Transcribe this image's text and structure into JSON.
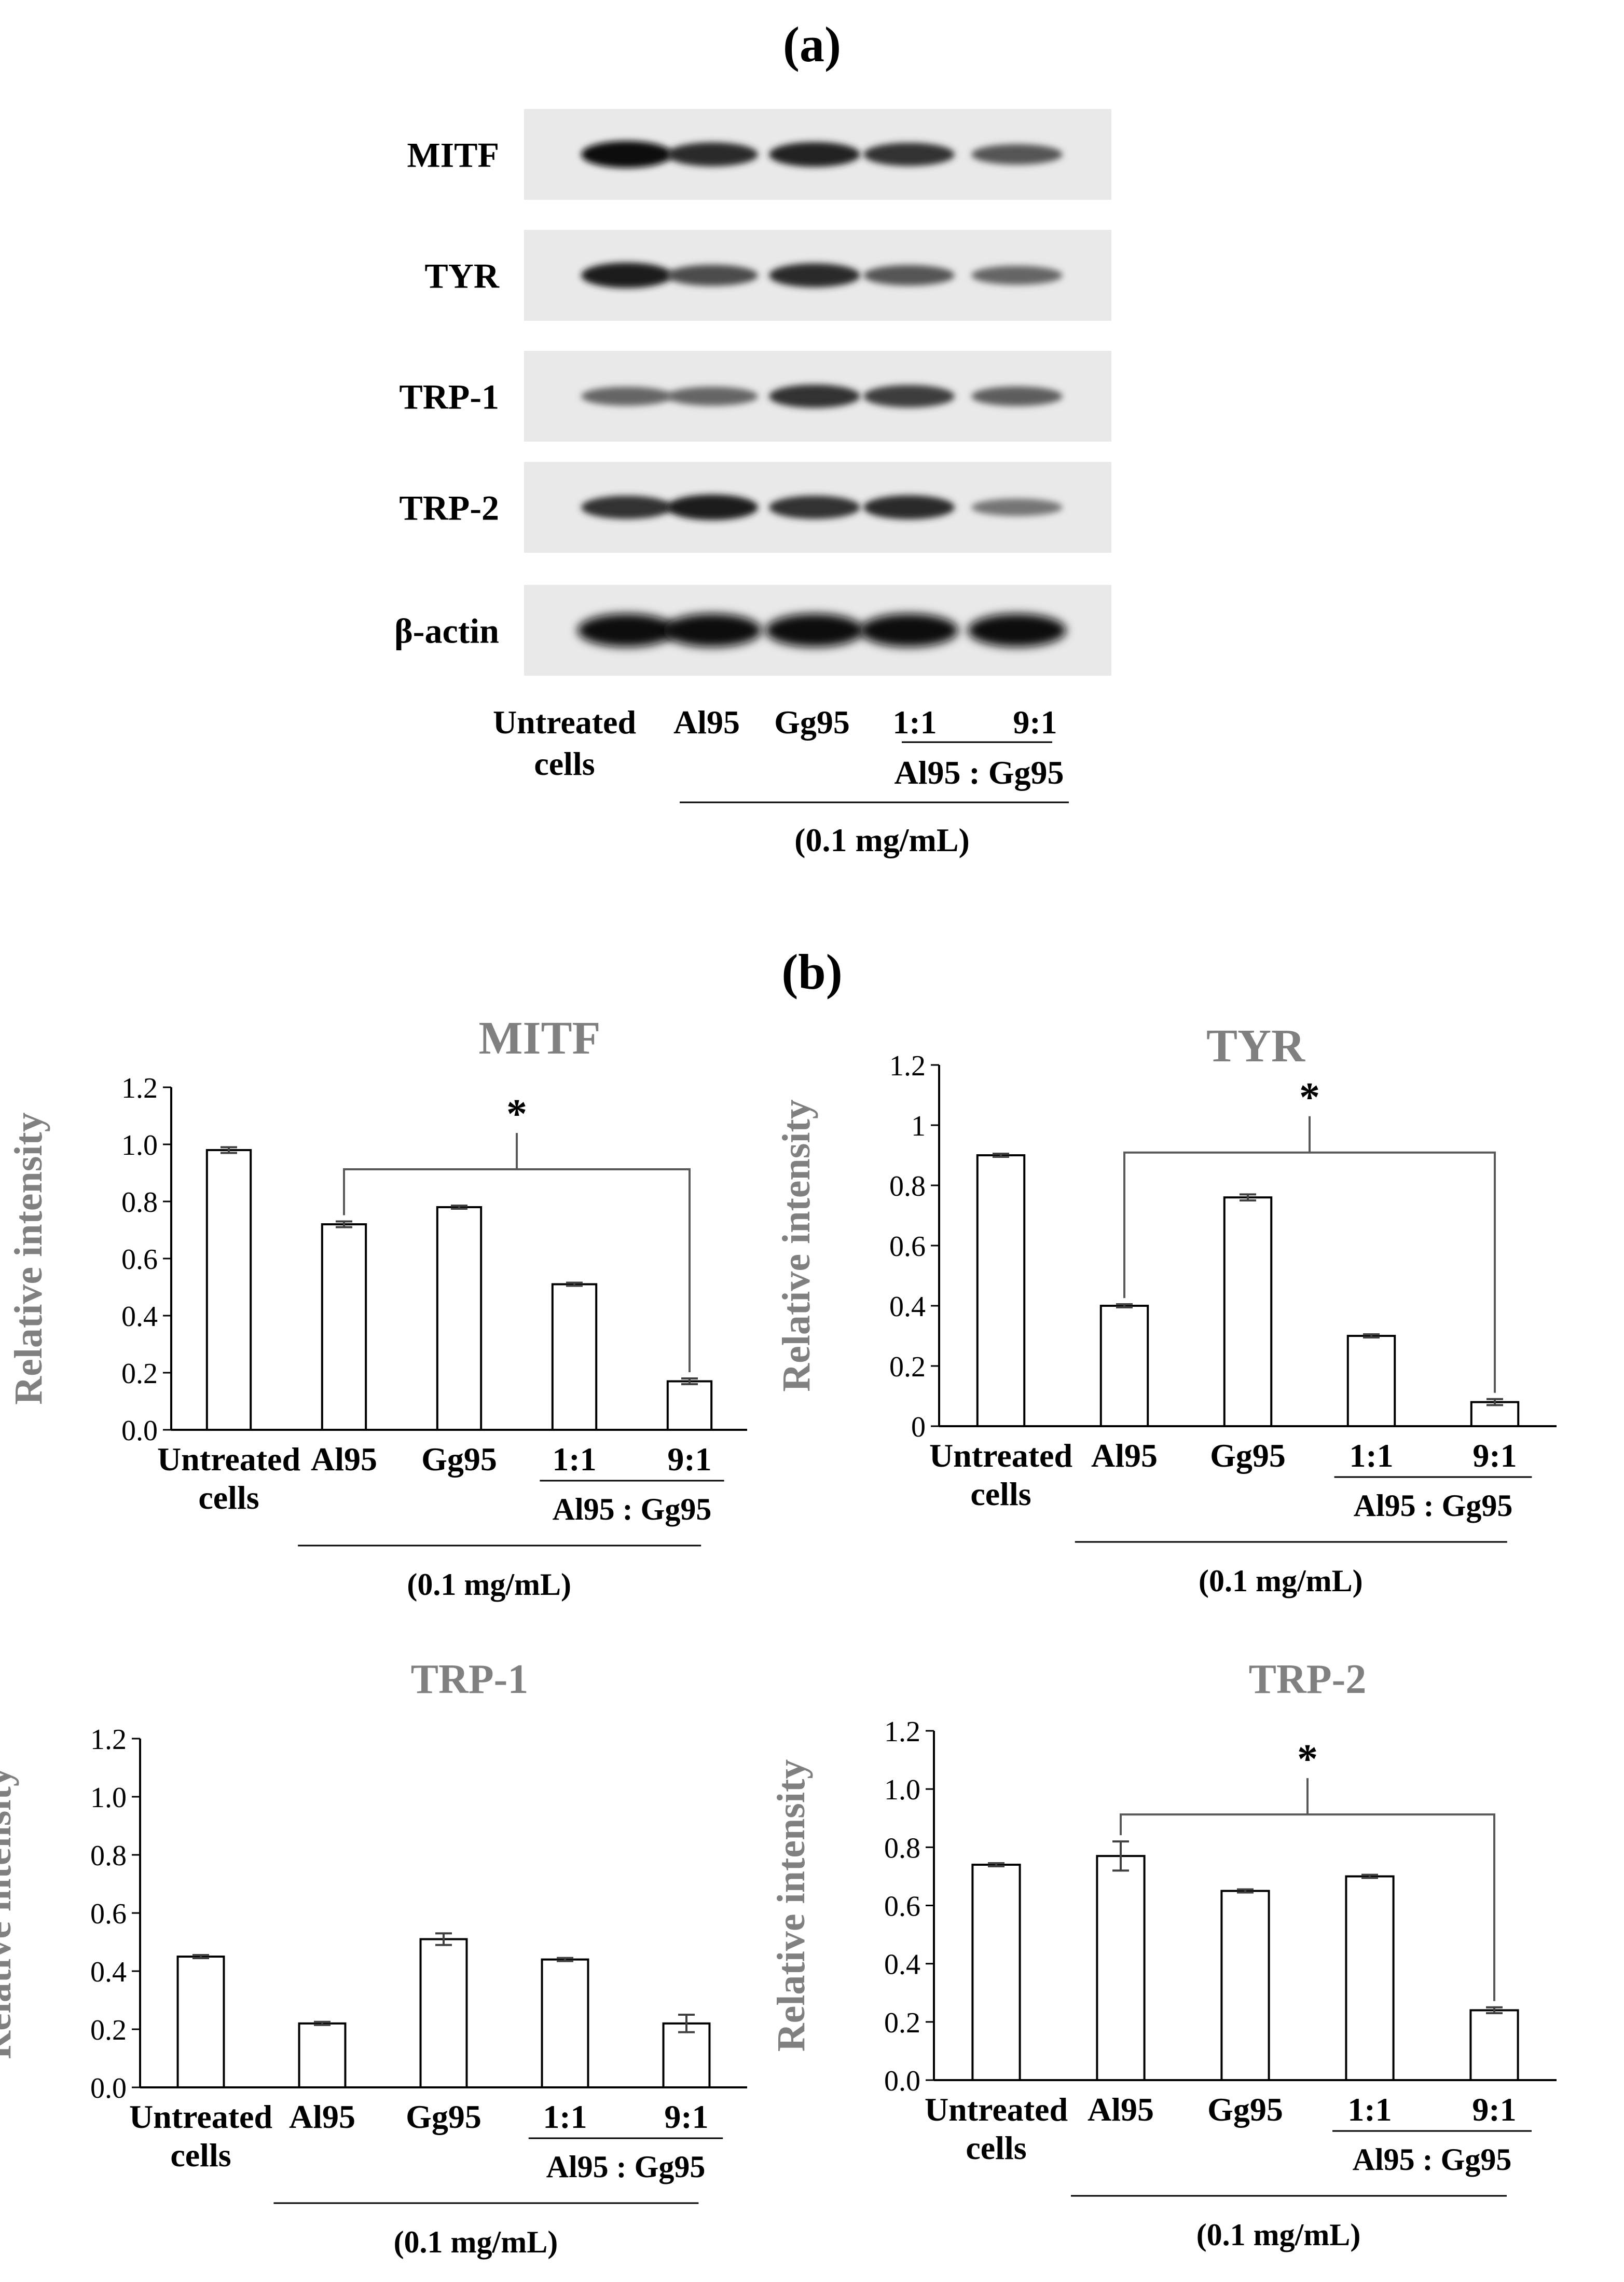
{
  "panel_a_label": "(a)",
  "panel_b_label": "(b)",
  "blot": {
    "proteins": [
      "MITF",
      "TYR",
      "TRP-1",
      "TRP-2",
      "β-actin"
    ],
    "lanes": [
      "Untreated cells",
      "Al95",
      "Gg95",
      "1:1",
      "9:1"
    ],
    "group_label": "Al95 : Gg95",
    "concentration": "(0.1 mg/mL)"
  },
  "charts_common": {
    "categories": [
      "Untreated cells",
      "Al95",
      "Gg95",
      "1:1",
      "9:1"
    ],
    "group_label": "Al95 : Gg95",
    "concentration": "(0.1 mg/mL)",
    "significance_mark": "*"
  },
  "chart_data": [
    {
      "type": "bar",
      "title": "MITF",
      "ylabel": "Relative intensity",
      "categories": [
        "Untreated cells",
        "Al95",
        "Gg95",
        "1:1",
        "9:1"
      ],
      "values": [
        0.98,
        0.72,
        0.78,
        0.51,
        0.17
      ],
      "errors": [
        0.01,
        0.01,
        0.005,
        0.005,
        0.01
      ],
      "ylim": [
        0,
        1.2
      ],
      "yticks": [
        "0.0",
        "0.2",
        "0.4",
        "0.6",
        "0.8",
        "1.0",
        "1.2"
      ],
      "significance": {
        "from": 1,
        "to": 4,
        "mark": "*"
      }
    },
    {
      "type": "bar",
      "title": "TYR",
      "ylabel": "Relative intensity",
      "categories": [
        "Untreated cells",
        "Al95",
        "Gg95",
        "1:1",
        "9:1"
      ],
      "values": [
        0.9,
        0.4,
        0.76,
        0.3,
        0.08
      ],
      "errors": [
        0.005,
        0.005,
        0.01,
        0.005,
        0.01
      ],
      "ylim": [
        0,
        1.2
      ],
      "yticks": [
        "0",
        "0.2",
        "0.4",
        "0.6",
        "0.8",
        "1",
        "1.2"
      ],
      "significance": {
        "from": 1,
        "to": 4,
        "mark": "*"
      }
    },
    {
      "type": "bar",
      "title": "TRP-1",
      "ylabel": "Relative intensity",
      "categories": [
        "Untreated cells",
        "Al95",
        "Gg95",
        "1:1",
        "9:1"
      ],
      "values": [
        0.45,
        0.22,
        0.51,
        0.44,
        0.22
      ],
      "errors": [
        0.005,
        0.005,
        0.02,
        0.005,
        0.03
      ],
      "ylim": [
        0,
        1.2
      ],
      "yticks": [
        "0.0",
        "0.2",
        "0.4",
        "0.6",
        "0.8",
        "1.0",
        "1.2"
      ]
    },
    {
      "type": "bar",
      "title": "TRP-2",
      "ylabel": "Relative intensity",
      "categories": [
        "Untreated cells",
        "Al95",
        "Gg95",
        "1:1",
        "9:1"
      ],
      "values": [
        0.74,
        0.77,
        0.65,
        0.7,
        0.24
      ],
      "errors": [
        0.005,
        0.05,
        0.005,
        0.005,
        0.01
      ],
      "ylim": [
        0,
        1.2
      ],
      "yticks": [
        "0.0",
        "0.2",
        "0.4",
        "0.6",
        "0.8",
        "1.0",
        "1.2"
      ],
      "significance": {
        "from": 1,
        "to": 4,
        "mark": "*"
      }
    }
  ]
}
